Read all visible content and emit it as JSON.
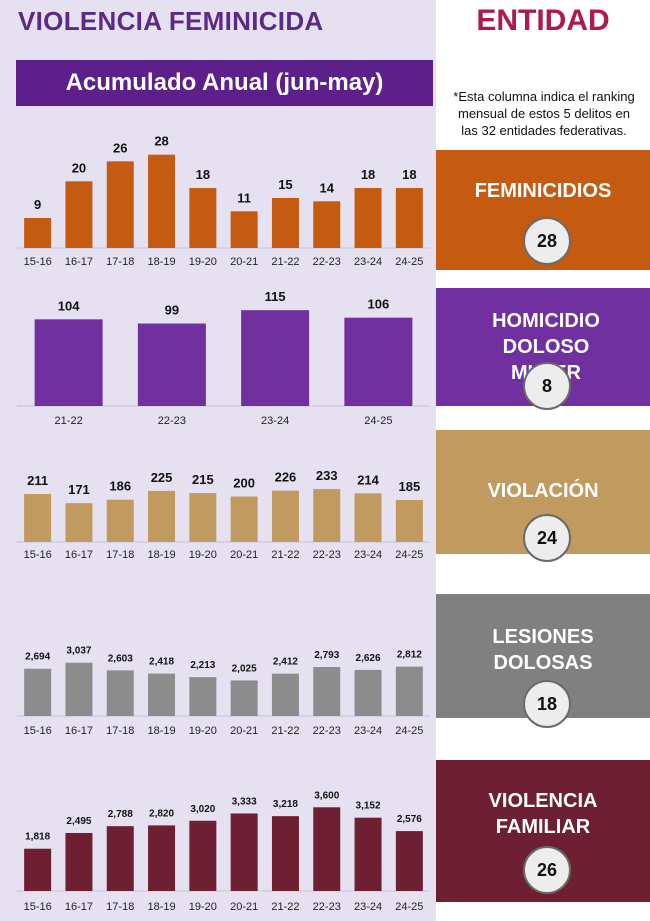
{
  "header": {
    "title": "VIOLENCIA FEMINICIDA",
    "subtitle": "Acumulado Anual (jun-may)",
    "entity_title": "ENTIDAD",
    "note": "*Esta columna indica el ranking mensual de estos 5 delitos en las 32 entidades federativas."
  },
  "colors": {
    "background_left": "#e6e1f1",
    "title_purple": "#5b2a86",
    "entity_red": "#b0194f"
  },
  "chart_data": [
    {
      "type": "bar",
      "categories": [
        "15-16",
        "16-17",
        "17-18",
        "18-19",
        "19-20",
        "20-21",
        "21-22",
        "22-23",
        "23-24",
        "24-25"
      ],
      "values": [
        9,
        20,
        26,
        28,
        18,
        11,
        15,
        14,
        18,
        18
      ],
      "labels": [
        "9",
        "20",
        "26",
        "28",
        "18",
        "11",
        "15",
        "14",
        "18",
        "18"
      ],
      "ylim": [
        0,
        30
      ],
      "color": "#c55a11"
    },
    {
      "type": "bar",
      "categories": [
        "21-22",
        "22-23",
        "23-24",
        "24-25"
      ],
      "values": [
        104,
        99,
        115,
        106
      ],
      "labels": [
        "104",
        "99",
        "115",
        "106"
      ],
      "ylim": [
        0,
        120
      ],
      "color": "#7030a0"
    },
    {
      "type": "bar",
      "categories": [
        "15-16",
        "16-17",
        "17-18",
        "18-19",
        "19-20",
        "20-21",
        "21-22",
        "22-23",
        "23-24",
        "24-25"
      ],
      "values": [
        211,
        171,
        186,
        225,
        215,
        200,
        226,
        233,
        214,
        185
      ],
      "labels": [
        "211",
        "171",
        "186",
        "225",
        "215",
        "200",
        "226",
        "233",
        "214",
        "185"
      ],
      "ylim": [
        0,
        440
      ],
      "color": "#c19a5f"
    },
    {
      "type": "bar",
      "categories": [
        "15-16",
        "16-17",
        "17-18",
        "18-19",
        "19-20",
        "20-21",
        "21-22",
        "22-23",
        "23-24",
        "24-25"
      ],
      "values": [
        2694,
        3037,
        2603,
        2418,
        2213,
        2025,
        2412,
        2793,
        2626,
        2812
      ],
      "labels": [
        "2,694",
        "3,037",
        "2,603",
        "2,418",
        "2,213",
        "2,025",
        "2,412",
        "2,793",
        "2,626",
        "2,812"
      ],
      "ylim": [
        0,
        5700
      ],
      "color": "#8c8c8c"
    },
    {
      "type": "bar",
      "categories": [
        "15-16",
        "16-17",
        "17-18",
        "18-19",
        "19-20",
        "20-21",
        "21-22",
        "22-23",
        "23-24",
        "24-25"
      ],
      "values": [
        1818,
        2495,
        2788,
        2820,
        3020,
        3333,
        3218,
        3600,
        3152,
        2576
      ],
      "labels": [
        "1,818",
        "2,495",
        "2,788",
        "2,820",
        "3,020",
        "3,333",
        "3,218",
        "3,600",
        "3,152",
        "2,576"
      ],
      "ylim": [
        0,
        4300
      ],
      "color": "#6e1f31"
    }
  ],
  "panels": [
    {
      "title": "FEMINICIDIOS",
      "rank": "28",
      "color": "#c55a11"
    },
    {
      "title": "HOMICIDIO DOLOSO MUJER",
      "rank": "8",
      "color": "#7030a0"
    },
    {
      "title": "VIOLACIÓN",
      "rank": "24",
      "color": "#c19a5f"
    },
    {
      "title": "LESIONES DOLOSAS",
      "rank": "18",
      "color": "#8c8c8c"
    },
    {
      "title": "VIOLENCIA FAMILIAR",
      "rank": "26",
      "color": "#6e1f31"
    }
  ]
}
